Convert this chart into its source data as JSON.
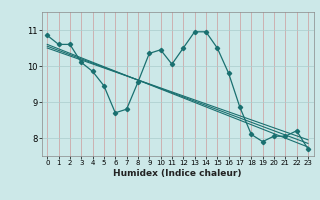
{
  "xlabel": "Humidex (Indice chaleur)",
  "ylabel": "",
  "bg_color": "#cce8e8",
  "grid_color": "#aacccc",
  "line_color": "#1a7070",
  "xlim": [
    -0.5,
    23.5
  ],
  "ylim": [
    7.5,
    11.5
  ],
  "yticks": [
    8,
    9,
    10,
    11
  ],
  "xticks": [
    0,
    1,
    2,
    3,
    4,
    5,
    6,
    7,
    8,
    9,
    10,
    11,
    12,
    13,
    14,
    15,
    16,
    17,
    18,
    19,
    20,
    21,
    22,
    23
  ],
  "main_series": [
    [
      0,
      10.85
    ],
    [
      1,
      10.6
    ],
    [
      2,
      10.6
    ],
    [
      3,
      10.1
    ],
    [
      4,
      9.85
    ],
    [
      5,
      9.45
    ],
    [
      6,
      8.7
    ],
    [
      7,
      8.8
    ],
    [
      8,
      9.55
    ],
    [
      9,
      10.35
    ],
    [
      10,
      10.45
    ],
    [
      11,
      10.05
    ],
    [
      12,
      10.5
    ],
    [
      13,
      10.95
    ],
    [
      14,
      10.95
    ],
    [
      15,
      10.5
    ],
    [
      16,
      9.8
    ],
    [
      17,
      8.85
    ],
    [
      18,
      8.1
    ],
    [
      19,
      7.9
    ],
    [
      20,
      8.05
    ],
    [
      21,
      8.05
    ],
    [
      22,
      8.2
    ],
    [
      23,
      7.7
    ]
  ],
  "trend_lines": [
    {
      "x_start": 0,
      "y_start": 10.6,
      "x_end": 23,
      "y_end": 7.75
    },
    {
      "x_start": 0,
      "y_start": 10.55,
      "x_end": 23,
      "y_end": 7.85
    },
    {
      "x_start": 0,
      "y_start": 10.5,
      "x_end": 23,
      "y_end": 7.95
    }
  ]
}
